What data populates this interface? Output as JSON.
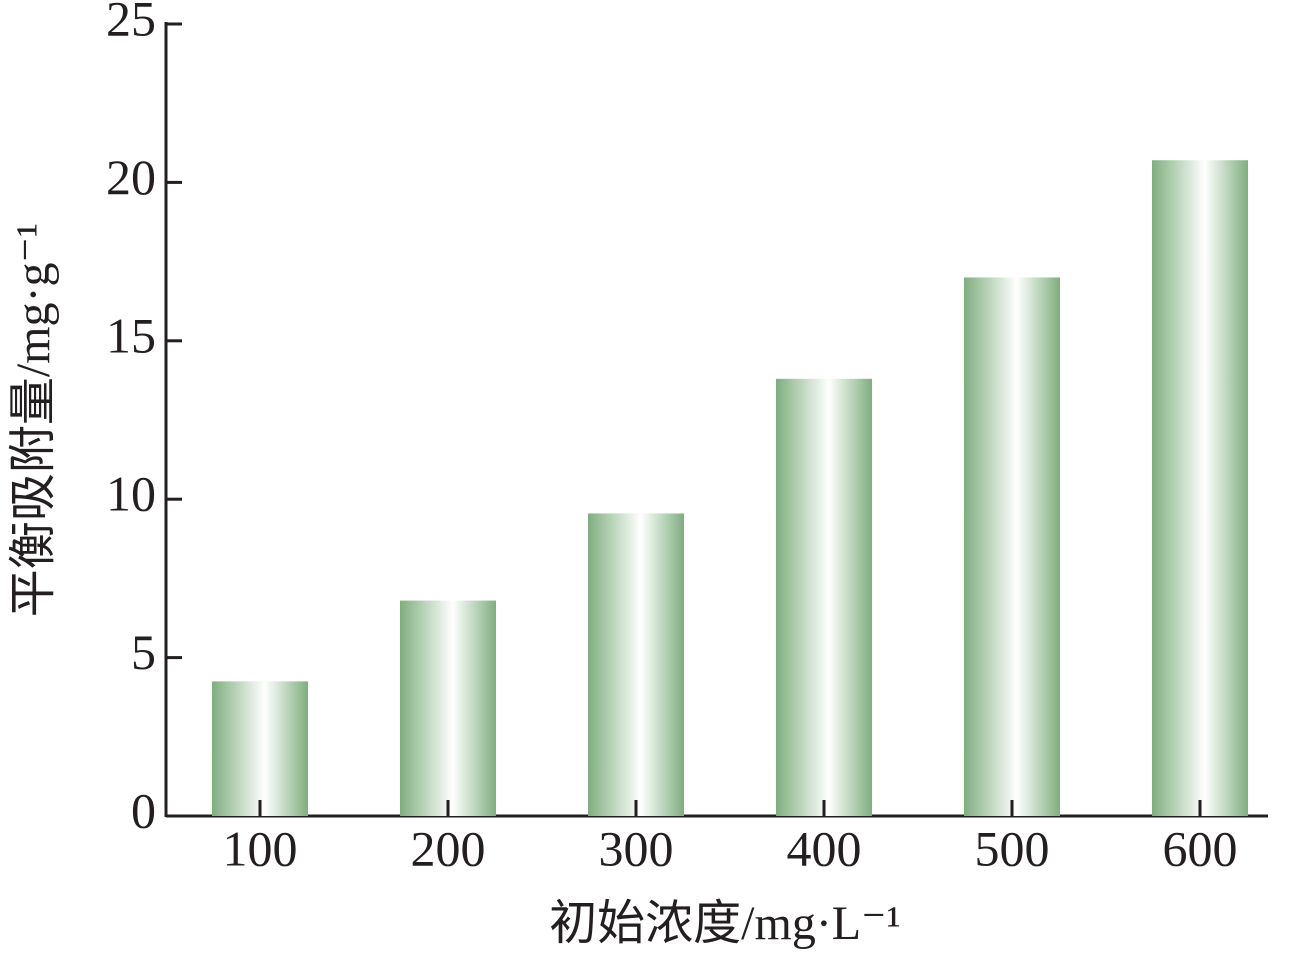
{
  "chart_data": {
    "type": "bar",
    "x_label": "初始浓度/mg·L⁻¹",
    "y_label": "平衡吸附量/mg·g⁻¹",
    "categories": [
      "100",
      "200",
      "300",
      "400",
      "500",
      "600"
    ],
    "values": [
      4.25,
      6.8,
      9.55,
      13.8,
      17.0,
      20.7
    ],
    "color": "#7fae7f",
    "ylim": [
      0,
      25
    ],
    "yticks": [
      0,
      5,
      10,
      15,
      20,
      25
    ],
    "grid": false
  }
}
